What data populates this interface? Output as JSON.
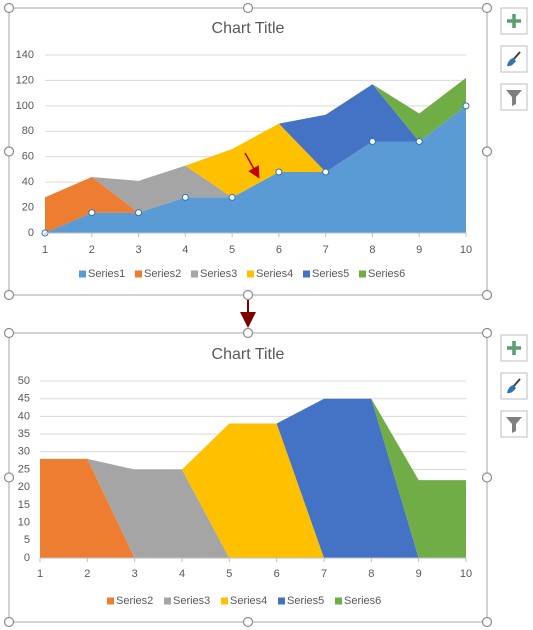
{
  "chart_data": [
    {
      "type": "area",
      "stacked": true,
      "title": "Chart Title",
      "x": [
        1,
        2,
        3,
        4,
        5,
        6,
        7,
        8,
        9,
        10
      ],
      "ylim": [
        0,
        140
      ],
      "yticks": [
        0,
        20,
        40,
        60,
        80,
        100,
        120,
        140
      ],
      "grid": true,
      "legend": "bottom",
      "series": [
        {
          "name": "Series1",
          "color": "#5b9bd5",
          "values": [
            0,
            16,
            16,
            28,
            28,
            48,
            48,
            72,
            72,
            100
          ]
        },
        {
          "name": "Series2",
          "color": "#ed7d31",
          "values": [
            28,
            28,
            0,
            0,
            0,
            0,
            0,
            0,
            0,
            0
          ]
        },
        {
          "name": "Series3",
          "color": "#a5a5a5",
          "values": [
            0,
            0,
            25,
            25,
            0,
            0,
            0,
            0,
            0,
            0
          ]
        },
        {
          "name": "Series4",
          "color": "#ffc000",
          "values": [
            0,
            0,
            0,
            0,
            38,
            38,
            0,
            0,
            0,
            0
          ]
        },
        {
          "name": "Series5",
          "color": "#4472c4",
          "values": [
            0,
            0,
            0,
            0,
            0,
            0,
            45,
            45,
            0,
            0
          ]
        },
        {
          "name": "Series6",
          "color": "#70ad47",
          "values": [
            0,
            0,
            0,
            0,
            0,
            0,
            0,
            0,
            22,
            22
          ]
        }
      ]
    },
    {
      "type": "area",
      "stacked": true,
      "title": "Chart Title",
      "x": [
        1,
        2,
        3,
        4,
        5,
        6,
        7,
        8,
        9,
        10
      ],
      "ylim": [
        0,
        50
      ],
      "yticks": [
        0,
        5,
        10,
        15,
        20,
        25,
        30,
        35,
        40,
        45,
        50
      ],
      "grid": true,
      "legend": "bottom",
      "series": [
        {
          "name": "Series2",
          "color": "#ed7d31",
          "values": [
            28,
            28,
            0,
            0,
            0,
            0,
            0,
            0,
            0,
            0
          ]
        },
        {
          "name": "Series3",
          "color": "#a5a5a5",
          "values": [
            0,
            0,
            25,
            25,
            0,
            0,
            0,
            0,
            0,
            0
          ]
        },
        {
          "name": "Series4",
          "color": "#ffc000",
          "values": [
            0,
            0,
            0,
            0,
            38,
            38,
            0,
            0,
            0,
            0
          ]
        },
        {
          "name": "Series5",
          "color": "#4472c4",
          "values": [
            0,
            0,
            0,
            0,
            0,
            0,
            45,
            45,
            0,
            0
          ]
        },
        {
          "name": "Series6",
          "color": "#70ad47",
          "values": [
            0,
            0,
            0,
            0,
            0,
            0,
            0,
            0,
            22,
            22
          ]
        }
      ]
    }
  ]
}
